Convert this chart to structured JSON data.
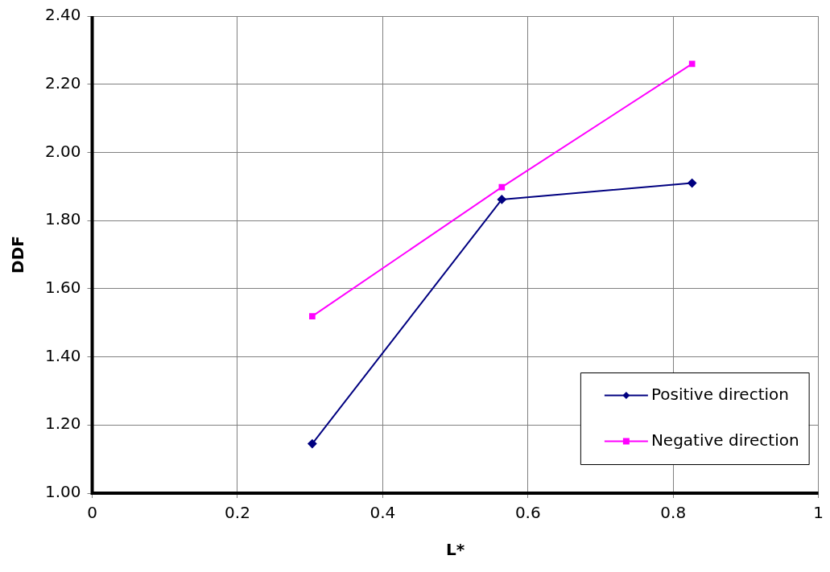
{
  "chart_data": {
    "type": "line",
    "xlabel": "L*",
    "ylabel": "DDF",
    "x": [
      0.303,
      0.564,
      0.826
    ],
    "series": [
      {
        "name": "Positive direction",
        "color": "#000080",
        "marker": "diamond",
        "values": [
          1.145,
          1.862,
          1.91
        ]
      },
      {
        "name": "Negative direction",
        "color": "#ff00ff",
        "marker": "square",
        "values": [
          1.519,
          1.898,
          2.26
        ]
      }
    ],
    "xlim": [
      0,
      1
    ],
    "xticks": [
      0,
      {
        "value": 0.2,
        "label": "0.2"
      },
      {
        "value": 0.4,
        "label": "0.4"
      },
      {
        "value": 0.6,
        "label": "0.6"
      },
      {
        "value": 0.8,
        "label": "0.8"
      },
      1
    ],
    "ylim": [
      1,
      2.4
    ],
    "yticks": [
      {
        "value": 1,
        "label": "1.00"
      },
      {
        "value": 1.2,
        "label": "1.20"
      },
      {
        "value": 1.4,
        "label": "1.40"
      },
      {
        "value": 1.6,
        "label": "1.60"
      },
      {
        "value": 1.8,
        "label": "1.80"
      },
      {
        "value": 2,
        "label": "2.00"
      },
      {
        "value": 2.2,
        "label": "2.20"
      },
      {
        "value": 2.4,
        "label": "2.40"
      }
    ],
    "grid": true,
    "legend": "bottom right"
  }
}
